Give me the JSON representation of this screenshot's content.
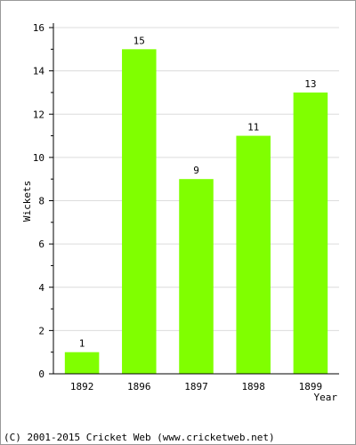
{
  "chart_data": {
    "type": "bar",
    "title": "",
    "xlabel": "Year",
    "ylabel": "Wickets",
    "categories": [
      "1892",
      "1896",
      "1897",
      "1898",
      "1899"
    ],
    "values": [
      1,
      15,
      9,
      11,
      13
    ],
    "ylim": [
      0,
      16
    ],
    "y_ticks": [
      0,
      2,
      4,
      6,
      8,
      10,
      12,
      14,
      16
    ],
    "bar_color": "#80ff00",
    "grid": "horizontal",
    "data_labels": true
  },
  "footer": {
    "copyright": "(C) 2001-2015 Cricket Web (www.cricketweb.net)"
  }
}
